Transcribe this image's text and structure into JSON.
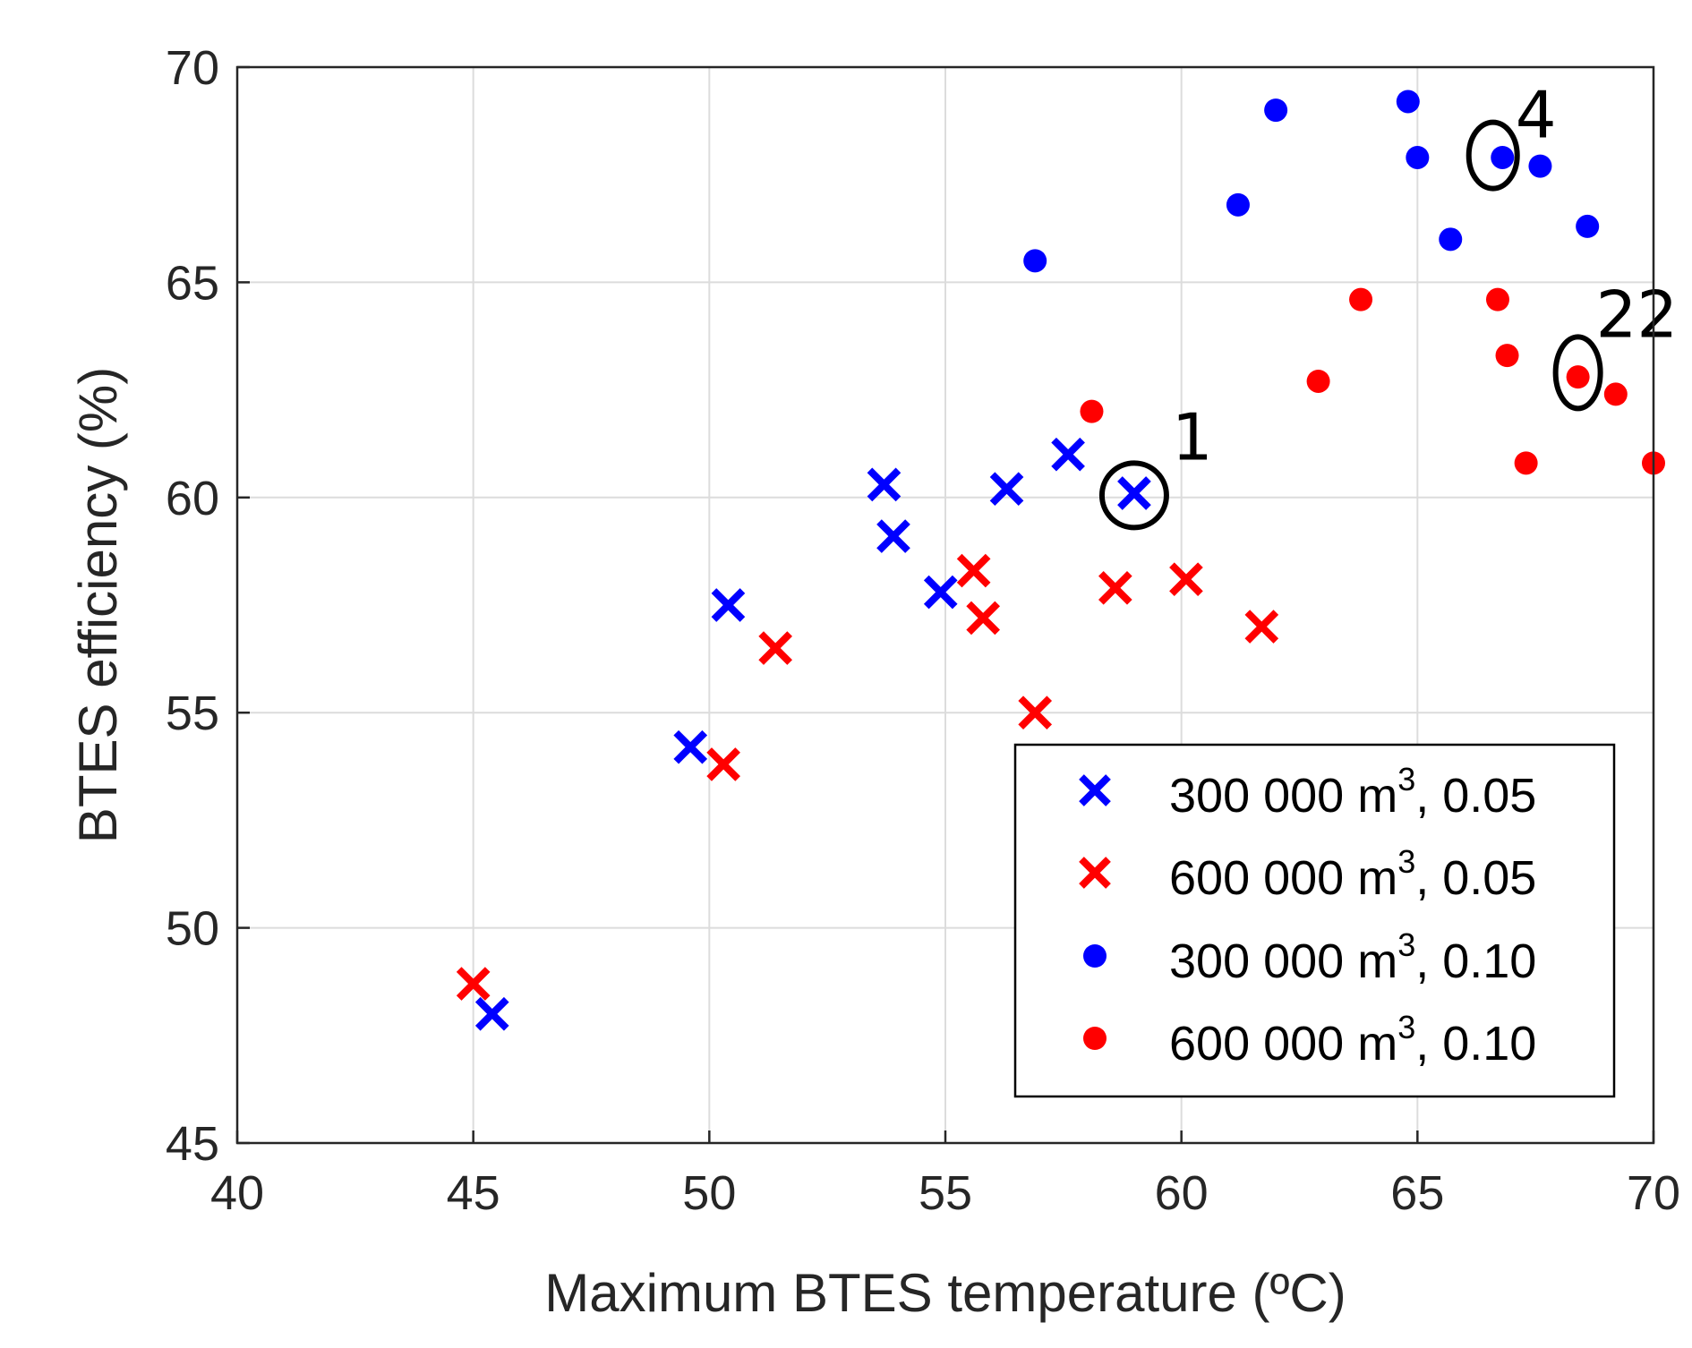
{
  "chart_data": {
    "type": "scatter",
    "title": "",
    "xlabel": "Maximum BTES temperature (ºC)",
    "ylabel": "BTES efficiency (%)",
    "xlim": [
      40,
      70
    ],
    "ylim": [
      45,
      70
    ],
    "xticks": [
      40,
      45,
      50,
      55,
      60,
      65,
      70
    ],
    "yticks": [
      45,
      50,
      55,
      60,
      65,
      70
    ],
    "grid": true,
    "legend_position": "bottom-right",
    "series": [
      {
        "name": "300 000 m3, 0.05",
        "legend_base": "300 000 m",
        "legend_sup": "3",
        "legend_tail": ", 0.05",
        "marker": "x",
        "color": "#0000ff",
        "points": [
          [
            45.4,
            48.0
          ],
          [
            49.6,
            54.2
          ],
          [
            50.4,
            57.5
          ],
          [
            53.7,
            60.3
          ],
          [
            53.9,
            59.1
          ],
          [
            54.9,
            57.8
          ],
          [
            56.3,
            60.2
          ],
          [
            57.6,
            61.0
          ],
          [
            59.0,
            60.1
          ]
        ]
      },
      {
        "name": "600 000 m3, 0.05",
        "legend_base": "600 000 m",
        "legend_sup": "3",
        "legend_tail": ", 0.05",
        "marker": "x",
        "color": "#ff0000",
        "points": [
          [
            45.0,
            48.7
          ],
          [
            50.3,
            53.8
          ],
          [
            51.4,
            56.5
          ],
          [
            55.6,
            58.3
          ],
          [
            55.8,
            57.2
          ],
          [
            56.9,
            55.0
          ],
          [
            58.6,
            57.9
          ],
          [
            60.1,
            58.1
          ],
          [
            61.7,
            57.0
          ]
        ]
      },
      {
        "name": "300 000 m3, 0.10",
        "legend_base": "300 000 m",
        "legend_sup": "3",
        "legend_tail": ", 0.10",
        "marker": "o",
        "color": "#0000ff",
        "points": [
          [
            56.9,
            65.5
          ],
          [
            61.2,
            66.8
          ],
          [
            62.0,
            69.0
          ],
          [
            64.8,
            69.2
          ],
          [
            65.0,
            67.9
          ],
          [
            65.7,
            66.0
          ],
          [
            66.8,
            67.9
          ],
          [
            67.6,
            67.7
          ],
          [
            68.6,
            66.3
          ]
        ]
      },
      {
        "name": "600 000 m3, 0.10",
        "legend_base": "600 000 m",
        "legend_sup": "3",
        "legend_tail": ", 0.10",
        "marker": "o",
        "color": "#ff0000",
        "points": [
          [
            58.1,
            62.0
          ],
          [
            62.9,
            62.7
          ],
          [
            63.8,
            64.6
          ],
          [
            66.7,
            64.6
          ],
          [
            66.9,
            63.3
          ],
          [
            67.3,
            60.8
          ],
          [
            68.4,
            62.8
          ],
          [
            69.2,
            62.4
          ],
          [
            70.0,
            60.8
          ]
        ]
      }
    ],
    "annotations": [
      {
        "label": "1",
        "x": 59.0,
        "y": 60.05
      },
      {
        "label": "4",
        "x": 66.6,
        "y": 67.95
      },
      {
        "label": "22",
        "x": 68.4,
        "y": 62.9
      }
    ]
  }
}
